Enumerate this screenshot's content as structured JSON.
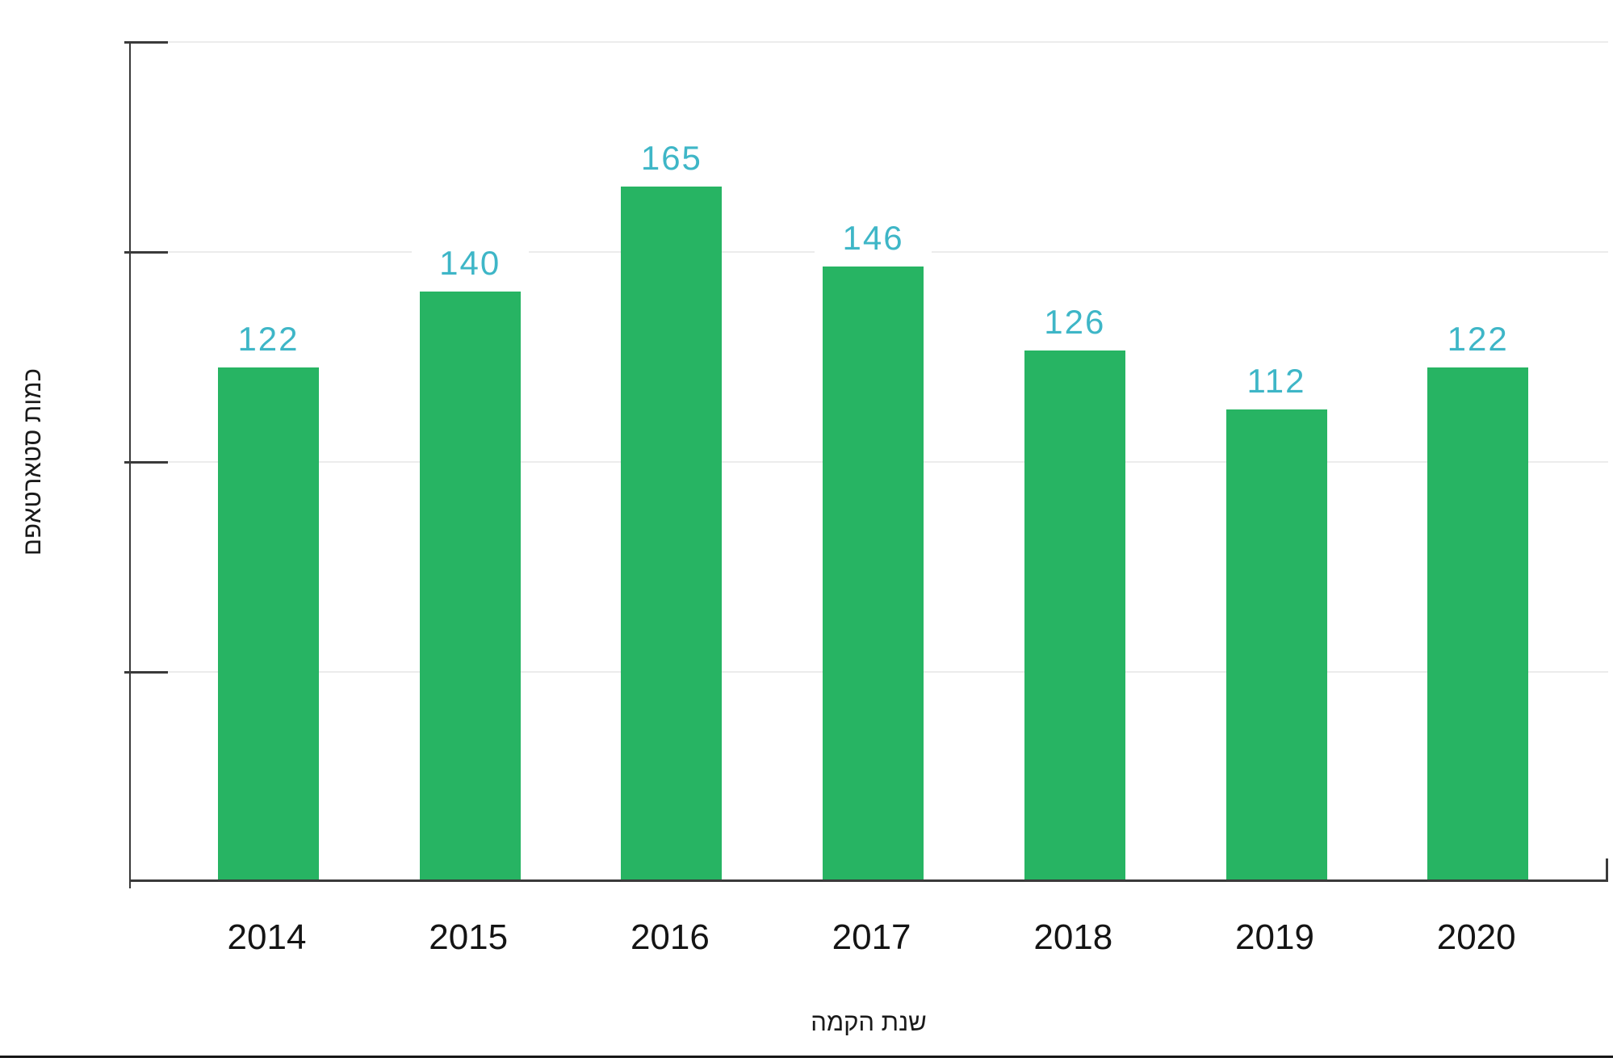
{
  "y_axis_title": "כמות סטארטאפם",
  "x_axis_title": "שנת הקמה",
  "chart_data": {
    "type": "bar",
    "categories": [
      "2014",
      "2015",
      "2016",
      "2017",
      "2018",
      "2019",
      "2020"
    ],
    "values": [
      122,
      140,
      165,
      146,
      126,
      112,
      122
    ],
    "title": "",
    "xlabel": "שנת הקמה",
    "ylabel": "כמות סטארטאפם",
    "ylim": [
      0,
      200
    ],
    "gridline_values": [
      50,
      100,
      150,
      200
    ],
    "grid": true,
    "legend": false,
    "y_tick_labels_visible": false,
    "bar_color": "#27b463",
    "value_label_color": "#3eb6c7",
    "axis_color": "#3a3a3a",
    "grid_color": "#ececec",
    "tick_text_color": "#141414"
  },
  "layout_note_colors": {
    "background": "#ffffff",
    "bottom_rule": "#161616"
  }
}
